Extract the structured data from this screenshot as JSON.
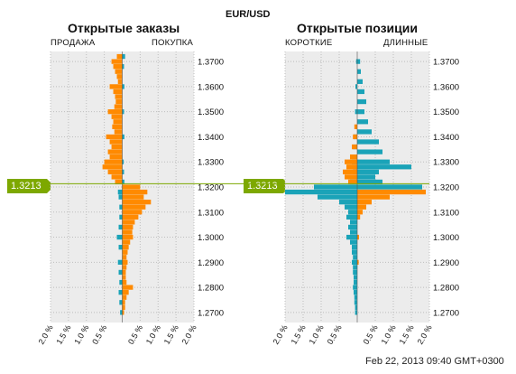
{
  "header": {
    "pair": "EUR/USD"
  },
  "current_price": "1.3213",
  "timestamp": "Feb 22, 2013 09:40 GMT+0300",
  "colors": {
    "orange": "#ff8a00",
    "teal": "#1aa3b8",
    "price_line": "#7da800",
    "grid": "#bdbdbd",
    "plot_bg": "#ececec"
  },
  "chart_data": [
    {
      "type": "bar",
      "title": "Открытые заказы",
      "left_label": "ПРОДАЖА",
      "right_label": "ПОКУПКА",
      "y_ticks": [
        "1.3700",
        "1.3600",
        "1.3500",
        "1.3400",
        "1.3300",
        "1.3200",
        "1.3100",
        "1.3000",
        "1.2900",
        "1.2800",
        "1.2700"
      ],
      "x_ticks": [
        "2.0 %",
        "1.5 %",
        "1.0 %",
        "0.5 %",
        "0.5 %",
        "1.0 %",
        "1.5 %",
        "2.0 %"
      ],
      "ylim": [
        1.266,
        1.374
      ],
      "xlim": [
        -2.0,
        2.0
      ],
      "series": [
        {
          "name": "ПРОДАЖА",
          "color": "#ff8a00",
          "side": "left",
          "bins": [
            {
              "price": 1.372,
              "value": 0.15
            },
            {
              "price": 1.37,
              "value": 0.3
            },
            {
              "price": 1.368,
              "value": 0.25
            },
            {
              "price": 1.366,
              "value": 0.2
            },
            {
              "price": 1.364,
              "value": 0.15
            },
            {
              "price": 1.362,
              "value": 0.12
            },
            {
              "price": 1.36,
              "value": 0.35
            },
            {
              "price": 1.358,
              "value": 0.25
            },
            {
              "price": 1.356,
              "value": 0.2
            },
            {
              "price": 1.354,
              "value": 0.18
            },
            {
              "price": 1.352,
              "value": 0.22
            },
            {
              "price": 1.35,
              "value": 0.4
            },
            {
              "price": 1.348,
              "value": 0.3
            },
            {
              "price": 1.346,
              "value": 0.25
            },
            {
              "price": 1.344,
              "value": 0.28
            },
            {
              "price": 1.342,
              "value": 0.22
            },
            {
              "price": 1.34,
              "value": 0.45
            },
            {
              "price": 1.338,
              "value": 0.35
            },
            {
              "price": 1.336,
              "value": 0.3
            },
            {
              "price": 1.334,
              "value": 0.4
            },
            {
              "price": 1.332,
              "value": 0.35
            },
            {
              "price": 1.33,
              "value": 0.5
            },
            {
              "price": 1.328,
              "value": 0.55
            },
            {
              "price": 1.326,
              "value": 0.4
            },
            {
              "price": 1.324,
              "value": 0.3
            },
            {
              "price": 1.322,
              "value": 0.2
            }
          ]
        },
        {
          "name": "ПОКУПКА",
          "color": "#ff8a00",
          "side": "right",
          "bins": [
            {
              "price": 1.32,
              "value": 0.5
            },
            {
              "price": 1.318,
              "value": 0.7
            },
            {
              "price": 1.316,
              "value": 0.6
            },
            {
              "price": 1.314,
              "value": 0.8
            },
            {
              "price": 1.312,
              "value": 0.65
            },
            {
              "price": 1.31,
              "value": 0.55
            },
            {
              "price": 1.308,
              "value": 0.45
            },
            {
              "price": 1.306,
              "value": 0.35
            },
            {
              "price": 1.304,
              "value": 0.3
            },
            {
              "price": 1.302,
              "value": 0.28
            },
            {
              "price": 1.3,
              "value": 0.3
            },
            {
              "price": 1.298,
              "value": 0.22
            },
            {
              "price": 1.296,
              "value": 0.18
            },
            {
              "price": 1.294,
              "value": 0.15
            },
            {
              "price": 1.292,
              "value": 0.12
            },
            {
              "price": 1.29,
              "value": 0.15
            },
            {
              "price": 1.288,
              "value": 0.12
            },
            {
              "price": 1.286,
              "value": 0.1
            },
            {
              "price": 1.284,
              "value": 0.1
            },
            {
              "price": 1.282,
              "value": 0.12
            },
            {
              "price": 1.28,
              "value": 0.3
            },
            {
              "price": 1.278,
              "value": 0.18
            },
            {
              "price": 1.276,
              "value": 0.12
            },
            {
              "price": 1.274,
              "value": 0.08
            },
            {
              "price": 1.272,
              "value": 0.08
            },
            {
              "price": 1.27,
              "value": 0.05
            }
          ]
        },
        {
          "name": "teal-buy-above",
          "color": "#1aa3b8",
          "side": "right",
          "bins": [
            {
              "price": 1.372,
              "value": 0.08
            },
            {
              "price": 1.368,
              "value": 0.05
            },
            {
              "price": 1.36,
              "value": 0.06
            },
            {
              "price": 1.35,
              "value": 0.05
            },
            {
              "price": 1.34,
              "value": 0.06
            },
            {
              "price": 1.33,
              "value": 0.04
            },
            {
              "price": 1.326,
              "value": 0.05
            },
            {
              "price": 1.322,
              "value": 0.06
            }
          ]
        },
        {
          "name": "teal-sell-below",
          "color": "#1aa3b8",
          "side": "left",
          "bins": [
            {
              "price": 1.318,
              "value": 0.12
            },
            {
              "price": 1.316,
              "value": 0.1
            },
            {
              "price": 1.312,
              "value": 0.08
            },
            {
              "price": 1.308,
              "value": 0.08
            },
            {
              "price": 1.304,
              "value": 0.1
            },
            {
              "price": 1.3,
              "value": 0.15
            },
            {
              "price": 1.296,
              "value": 0.1
            },
            {
              "price": 1.29,
              "value": 0.12
            },
            {
              "price": 1.286,
              "value": 0.1
            },
            {
              "price": 1.282,
              "value": 0.08
            },
            {
              "price": 1.278,
              "value": 0.1
            },
            {
              "price": 1.274,
              "value": 0.08
            },
            {
              "price": 1.27,
              "value": 0.06
            }
          ]
        }
      ]
    },
    {
      "type": "bar",
      "title": "Открытые позиции",
      "left_label": "КОРОТКИЕ",
      "right_label": "ДЛИННЫЕ",
      "y_ticks": [
        "1.3700",
        "1.3600",
        "1.3500",
        "1.3400",
        "1.3300",
        "1.3200",
        "1.3100",
        "1.3000",
        "1.2900",
        "1.2800",
        "1.2700"
      ],
      "x_ticks": [
        "2.0 %",
        "1.5 %",
        "1.0 %",
        "0.5 %",
        "0.5 %",
        "1.0 %",
        "1.5 %",
        "2.0 %"
      ],
      "ylim": [
        1.266,
        1.374
      ],
      "xlim": [
        -2.0,
        2.0
      ],
      "series": [
        {
          "name": "КОРОТКИЕ",
          "color": "#1aa3b8",
          "side": "left",
          "bins": [
            {
              "price": 1.37,
              "value": 0.03
            },
            {
              "price": 1.36,
              "value": 0.05
            },
            {
              "price": 1.35,
              "value": 0.06
            },
            {
              "price": 1.34,
              "value": 0.1
            },
            {
              "price": 1.336,
              "value": 0.12
            },
            {
              "price": 1.33,
              "value": 0.15
            },
            {
              "price": 1.326,
              "value": 0.12
            },
            {
              "price": 1.322,
              "value": 0.2
            },
            {
              "price": 1.32,
              "value": 1.2
            },
            {
              "price": 1.318,
              "value": 2.0
            },
            {
              "price": 1.316,
              "value": 1.1
            },
            {
              "price": 1.314,
              "value": 0.5
            },
            {
              "price": 1.312,
              "value": 0.35
            },
            {
              "price": 1.31,
              "value": 0.25
            },
            {
              "price": 1.308,
              "value": 0.3
            },
            {
              "price": 1.306,
              "value": 0.2
            },
            {
              "price": 1.304,
              "value": 0.25
            },
            {
              "price": 1.302,
              "value": 0.2
            },
            {
              "price": 1.3,
              "value": 0.3
            },
            {
              "price": 1.298,
              "value": 0.2
            },
            {
              "price": 1.296,
              "value": 0.15
            },
            {
              "price": 1.294,
              "value": 0.15
            },
            {
              "price": 1.292,
              "value": 0.12
            },
            {
              "price": 1.29,
              "value": 0.15
            },
            {
              "price": 1.288,
              "value": 0.12
            },
            {
              "price": 1.286,
              "value": 0.12
            },
            {
              "price": 1.284,
              "value": 0.1
            },
            {
              "price": 1.282,
              "value": 0.1
            },
            {
              "price": 1.28,
              "value": 0.12
            },
            {
              "price": 1.278,
              "value": 0.1
            },
            {
              "price": 1.276,
              "value": 0.08
            },
            {
              "price": 1.274,
              "value": 0.08
            },
            {
              "price": 1.272,
              "value": 0.06
            },
            {
              "price": 1.27,
              "value": 0.06
            }
          ]
        },
        {
          "name": "teal-long-above",
          "color": "#1aa3b8",
          "side": "right",
          "bins": [
            {
              "price": 1.37,
              "value": 0.08
            },
            {
              "price": 1.366,
              "value": 0.1
            },
            {
              "price": 1.362,
              "value": 0.15
            },
            {
              "price": 1.358,
              "value": 0.2
            },
            {
              "price": 1.354,
              "value": 0.25
            },
            {
              "price": 1.35,
              "value": 0.2
            },
            {
              "price": 1.346,
              "value": 0.3
            },
            {
              "price": 1.342,
              "value": 0.4
            },
            {
              "price": 1.338,
              "value": 0.6
            },
            {
              "price": 1.334,
              "value": 0.7
            },
            {
              "price": 1.33,
              "value": 0.9
            },
            {
              "price": 1.328,
              "value": 1.5
            },
            {
              "price": 1.326,
              "value": 0.6
            },
            {
              "price": 1.324,
              "value": 0.5
            },
            {
              "price": 1.322,
              "value": 0.7
            },
            {
              "price": 1.32,
              "value": 1.8
            }
          ]
        },
        {
          "name": "ДЛИННЫЕ",
          "color": "#ff8a00",
          "side": "right",
          "bins": [
            {
              "price": 1.318,
              "value": 1.9
            },
            {
              "price": 1.316,
              "value": 0.9
            },
            {
              "price": 1.314,
              "value": 0.4
            },
            {
              "price": 1.312,
              "value": 0.25
            },
            {
              "price": 1.31,
              "value": 0.15
            },
            {
              "price": 1.308,
              "value": 0.08
            },
            {
              "price": 1.3,
              "value": 0.05
            },
            {
              "price": 1.29,
              "value": 0.04
            }
          ]
        },
        {
          "name": "orange-short-above",
          "color": "#ff8a00",
          "side": "left",
          "bins": [
            {
              "price": 1.344,
              "value": 0.08
            },
            {
              "price": 1.34,
              "value": 0.12
            },
            {
              "price": 1.336,
              "value": 0.15
            },
            {
              "price": 1.332,
              "value": 0.2
            },
            {
              "price": 1.33,
              "value": 0.35
            },
            {
              "price": 1.328,
              "value": 0.3
            },
            {
              "price": 1.326,
              "value": 0.4
            },
            {
              "price": 1.324,
              "value": 0.35
            },
            {
              "price": 1.322,
              "value": 0.25
            }
          ]
        }
      ]
    }
  ]
}
